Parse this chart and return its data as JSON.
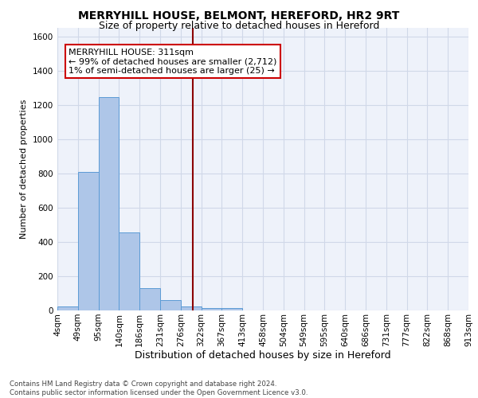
{
  "title": "MERRYHILL HOUSE, BELMONT, HEREFORD, HR2 9RT",
  "subtitle": "Size of property relative to detached houses in Hereford",
  "xlabel": "Distribution of detached houses by size in Hereford",
  "ylabel": "Number of detached properties",
  "bin_labels": [
    "4sqm",
    "49sqm",
    "95sqm",
    "140sqm",
    "186sqm",
    "231sqm",
    "276sqm",
    "322sqm",
    "367sqm",
    "413sqm",
    "458sqm",
    "504sqm",
    "549sqm",
    "595sqm",
    "640sqm",
    "686sqm",
    "731sqm",
    "777sqm",
    "822sqm",
    "868sqm",
    "913sqm"
  ],
  "bar_values": [
    25,
    810,
    1245,
    455,
    130,
    60,
    25,
    15,
    15,
    0,
    0,
    0,
    0,
    0,
    0,
    0,
    0,
    0,
    0,
    0
  ],
  "bar_color": "#aec6e8",
  "bar_edge_color": "#5b9bd5",
  "grid_color": "#d0d8e8",
  "background_color": "#eef2fa",
  "vline_x": 6.6,
  "vline_color": "#8b0000",
  "annotation_text": "MERRYHILL HOUSE: 311sqm\n← 99% of detached houses are smaller (2,712)\n1% of semi-detached houses are larger (25) →",
  "annotation_box_color": "#ffffff",
  "annotation_box_edge": "#cc0000",
  "ylim": [
    0,
    1650
  ],
  "yticks": [
    0,
    200,
    400,
    600,
    800,
    1000,
    1200,
    1400,
    1600
  ],
  "footer": "Contains HM Land Registry data © Crown copyright and database right 2024.\nContains public sector information licensed under the Open Government Licence v3.0.",
  "title_fontsize": 10,
  "subtitle_fontsize": 9,
  "xlabel_fontsize": 9,
  "ylabel_fontsize": 8,
  "tick_fontsize": 7.5,
  "annotation_fontsize": 8
}
